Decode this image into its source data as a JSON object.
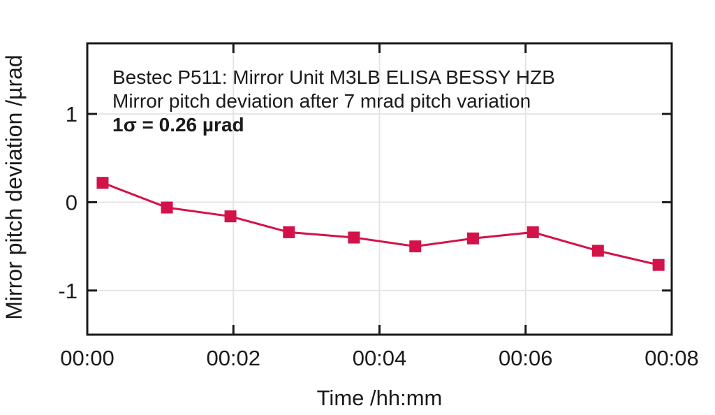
{
  "chart_data": {
    "type": "line",
    "title_lines": [
      "Bestec P511: Mirror Unit M3LB ELISA BESSY HZB",
      "Mirror pitch deviation after 7 mrad pitch variation",
      "1σ = 0.26 µrad"
    ],
    "xlabel": "Time /hh:mm",
    "ylabel": "Mirror pitch deviation /µrad",
    "x_minutes": [
      0.21,
      1.09,
      1.96,
      2.76,
      3.65,
      4.49,
      5.28,
      6.1,
      6.99,
      7.82
    ],
    "y_urad": [
      0.22,
      -0.06,
      -0.16,
      -0.34,
      -0.4,
      -0.5,
      -0.41,
      -0.34,
      -0.55,
      -0.71
    ],
    "xlim": [
      0,
      8
    ],
    "ylim": [
      -1.5,
      1.8
    ],
    "x_ticks": [
      {
        "value": 0,
        "label": "00:00"
      },
      {
        "value": 2,
        "label": "00:02"
      },
      {
        "value": 4,
        "label": "00:04"
      },
      {
        "value": 6,
        "label": "00:06"
      },
      {
        "value": 8,
        "label": "00:08"
      }
    ],
    "y_ticks": [
      {
        "value": 1,
        "label": "1"
      },
      {
        "value": 0,
        "label": "0"
      },
      {
        "value": -1,
        "label": "-1"
      }
    ],
    "grid": true,
    "legend": "none",
    "marker": "square",
    "colors": {
      "series": "#d4124a",
      "frame": "#1a1a1a",
      "grid": "#e4e4e4",
      "text": "#1a1a1a",
      "background": "#ffffff"
    }
  }
}
